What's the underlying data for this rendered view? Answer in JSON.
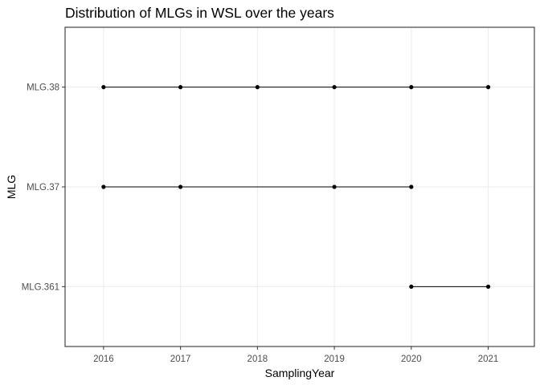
{
  "chart_data": {
    "type": "line",
    "title": "Distribution of MLGs in WSL over the years",
    "xlabel": "SamplingYear",
    "ylabel": "MLG",
    "x_ticks": [
      "2016",
      "2017",
      "2018",
      "2019",
      "2020",
      "2021"
    ],
    "y_categories": [
      "MLG.361",
      "MLG.37",
      "MLG.38"
    ],
    "xlim": [
      2015.5,
      2021.6
    ],
    "grid": true,
    "point_color": "#000000",
    "series": [
      {
        "category": "MLG.38",
        "x": [
          2016,
          2017,
          2018,
          2019,
          2020,
          2021
        ]
      },
      {
        "category": "MLG.37",
        "x": [
          2016,
          2017,
          2019,
          2020
        ]
      },
      {
        "category": "MLG.361",
        "x": [
          2020,
          2021
        ]
      }
    ]
  }
}
